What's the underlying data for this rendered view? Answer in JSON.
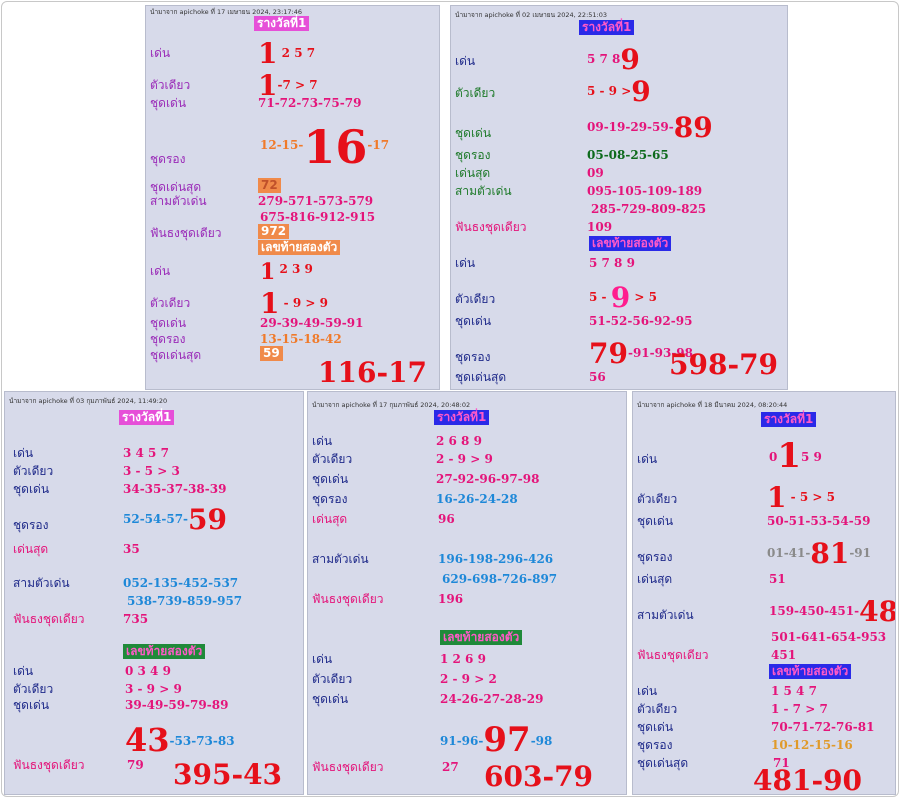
{
  "panels": {
    "p1": {
      "header": "นำมาจาก apichoke ที่ 17 เมษายน 2024, 23:17:46",
      "title": "รางวัลที่1",
      "den_label": "เด่น",
      "den_big": "1",
      "den_rest": "2 5 7",
      "tua_label": "ตัวเดียว",
      "tua_big": "1",
      "tua_rest": "-7 > 7",
      "chud_label": "ชุดเด่น",
      "chud_val": "71-72-73-75-79",
      "rong_label": "ชุดรอง",
      "rong_pre": "12-15-",
      "rong_big": "16",
      "rong_post": "-17",
      "sud_label": "ชุดเด่นสุด",
      "sud_val": "72",
      "sam_label": "สามตัวเด่น",
      "sam_1": "279-571-573-579",
      "sam_2": "675-816-912-915",
      "fan_label": "ฟันธงชุดเดียว",
      "fan_val": "972",
      "sub_title": "เลขท้ายสองตัว",
      "den2_label": "เด่น",
      "den2_big": "1",
      "den2_rest": "2 3 9",
      "tua2_label": "ตัวเดียว",
      "tua2_big": "1",
      "tua2_rest": "- 9 > 9",
      "chud2_label": "ชุดเด่น",
      "chud2_val": "29-39-49-59-91",
      "rong2_label": "ชุดรอง",
      "rong2_val": "13-15-18-42",
      "sud2_label": "ชุดเด่นสุด",
      "sud2_val": "59",
      "result": "116-17"
    },
    "p2": {
      "header": "นำมาจาก apichoke ที่ 02 เมษายน 2024, 22:51:03",
      "title": "รางวัลที่1",
      "den_label": "เด่น",
      "den_rest": "5 7 8",
      "den_big": "9",
      "tua_label": "ตัวเดียว",
      "tua_rest": "5 - 9 >",
      "tua_big": "9",
      "chud_label": "ชุดเด่น",
      "chud_val": "09-19-29-59-",
      "chud_big": "89",
      "rong_label": "ชุดรอง",
      "rong_val": "05-08-25-65",
      "sud_label": "เด่นสุด",
      "sud_val": "09",
      "sam_label": "สามตัวเด่น",
      "sam_1": "095-105-109-189",
      "sam_2": "285-729-809-825",
      "fan_label": "ฟันธงชุดเดียว",
      "fan_val": "109",
      "sub_title": "เลขท้ายสองตัว",
      "den2_label": "เด่น",
      "den2_val": "5 7 8 9",
      "tua2_label": "ตัวเดียว",
      "tua2_pre": "5 -",
      "tua2_big": "9",
      "tua2_post": "> 5",
      "chud2_label": "ชุดเด่น",
      "chud2_val": "51-52-56-92-95",
      "rong2_label": "ชุดรอง",
      "rong2_big": "79",
      "rong2_post": "-91-93-98",
      "sud2_label": "ชุดเด่นสุด",
      "sud2_val": "56",
      "result": "598-79"
    },
    "p3": {
      "header": "นำมาจาก apichoke ที่ 03 กุมภาพันธ์ 2024, 11:49:20",
      "title": "รางวัลที่1",
      "den_label": "เด่น",
      "den_val": "3 4 5 7",
      "tua_label": "ตัวเดียว",
      "tua_val": "3 - 5 > 3",
      "chud_label": "ชุดเด่น",
      "chud_val": "34-35-37-38-39",
      "rong_label": "ชุดรอง",
      "rong_val": "52-54-57-",
      "rong_big": "59",
      "sud_label": "เด่นสุด",
      "sud_val": "35",
      "sam_label": "สามตัวเด่น",
      "sam_1": "052-135-452-537",
      "sam_2": "538-739-859-957",
      "fan_label": "ฟันธงชุดเดียว",
      "fan_val": "735",
      "sub_title": "เลขท้ายสองตัว",
      "den2_label": "เด่น",
      "den2_val": "0 3 4 9",
      "tua2_label": "ตัวเดียว",
      "tua2_val": "3 - 9 > 9",
      "chud2_label": "ชุดเด่น",
      "chud2_val": "39-49-59-79-89",
      "rong2_big": "43",
      "rong2_post": "-53-73-83",
      "fan2_label": "ฟันธงชุดเดียว",
      "fan2_val": "79",
      "result": "395-43"
    },
    "p4": {
      "header": "นำมาจาก apichoke ที่ 17 กุมภาพันธ์ 2024, 20:48:02",
      "title": "รางวัลที่1",
      "den_label": "เด่น",
      "den_val": "2 6 8 9",
      "tua_label": "ตัวเดียว",
      "tua_val": "2 - 9 > 9",
      "chud_label": "ชุดเด่น",
      "chud_val": "27-92-96-97-98",
      "rong_label": "ชุดรอง",
      "rong_val": "16-26-24-28",
      "sud_label": "เด่นสุด",
      "sud_val": "96",
      "sam_label": "สามตัวเด่น",
      "sam_1": "196-198-296-426",
      "sam_2": "629-698-726-897",
      "fan_label": "ฟันธงชุดเดียว",
      "fan_val": "196",
      "sub_title": "เลขท้ายสองตัว",
      "den2_label": "เด่น",
      "den2_val": "1 2 6 9",
      "tua2_label": "ตัวเดียว",
      "tua2_val": "2 - 9 > 2",
      "chud2_label": "ชุดเด่น",
      "chud2_val": "24-26-27-28-29",
      "rong2_pre": "91-96-",
      "rong2_big": "97",
      "rong2_post": "-98",
      "fan2_label": "ฟันธงชุดเดียว",
      "fan2_val": "27",
      "result": "603-79"
    },
    "p5": {
      "header": "นำมาจาก apichoke ที่ 18 มีนาคม 2024, 08:20:44",
      "title": "รางวัลที่1",
      "den_label": "เด่น",
      "den_pre": "0",
      "den_big": "1",
      "den_post": "5 9",
      "tua_label": "ตัวเดียว",
      "tua_big": "1",
      "tua_rest": "- 5 > 5",
      "chud_label": "ชุดเด่น",
      "chud_val": "50-51-53-54-59",
      "rong_label": "ชุดรอง",
      "rong_pre": "01-41-",
      "rong_big": "81",
      "rong_post": "-91",
      "sud_label": "เด่นสุด",
      "sud_val": "51",
      "sam_label": "สามตัวเด่น",
      "sam_1": "159-450-451-",
      "sam_big": "481",
      "sam_2": "501-641-654-953",
      "fan_label": "ฟันธงชุดเดียว",
      "fan_val": "451",
      "sub_title": "เลขท้ายสองตัว",
      "den2_label": "เด่น",
      "den2_val": "1 5 4 7",
      "tua2_label": "ตัวเดียว",
      "tua2_val": "1 - 7 > 7",
      "chud2_label": "ชุดเด่น",
      "chud2_val": "70-71-72-76-81",
      "rong2_label": "ชุดรอง",
      "rong2_val": "10-12-15-16",
      "sud2_label": "ชุดเด่นสุด",
      "sud2_val": "71",
      "result": "481-90"
    }
  }
}
